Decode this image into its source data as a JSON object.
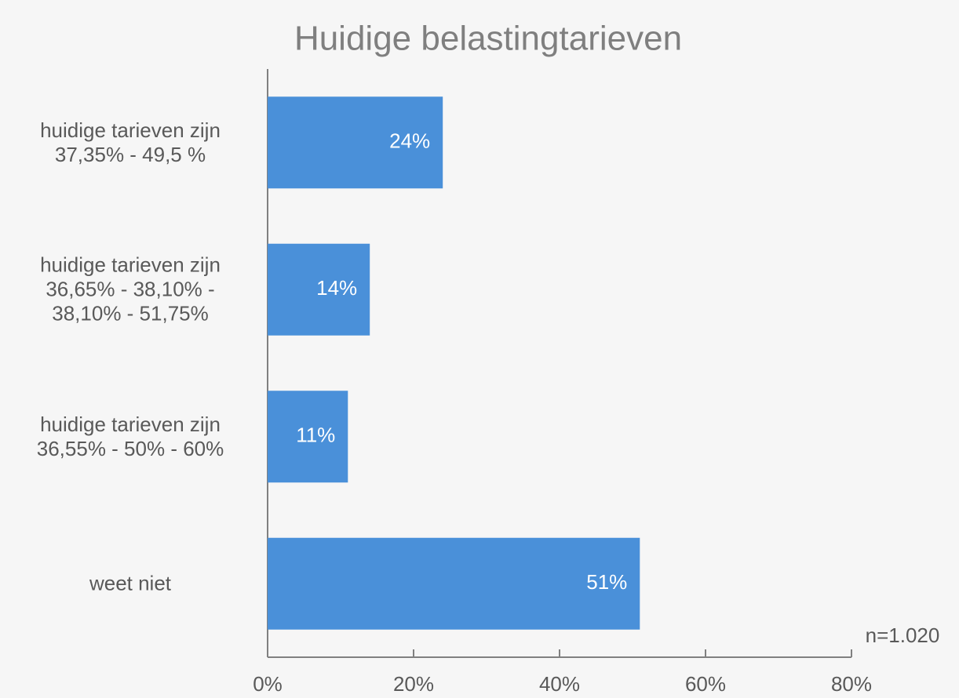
{
  "chart_data": {
    "type": "hbar",
    "title": "Huidige belastingtarieven",
    "categories": [
      "huidige tarieven zijn\n37,35% - 49,5 %",
      "huidige tarieven zijn\n36,65% - 38,10% -\n38,10% - 51,75%",
      "huidige tarieven zijn\n36,55% - 50% - 60%",
      "weet niet"
    ],
    "values": [
      24,
      14,
      11,
      51
    ],
    "value_labels": [
      "24%",
      "14%",
      "11%",
      "51%"
    ],
    "color": "#4a90d9",
    "xlim": [
      0,
      80
    ],
    "xticks": [
      {
        "value": 0,
        "label": "0%"
      },
      {
        "value": 20,
        "label": "20%"
      },
      {
        "value": 40,
        "label": "40%"
      },
      {
        "value": 60,
        "label": "60%"
      },
      {
        "value": 80,
        "label": "80%"
      }
    ],
    "annotation": "n=1.020"
  }
}
